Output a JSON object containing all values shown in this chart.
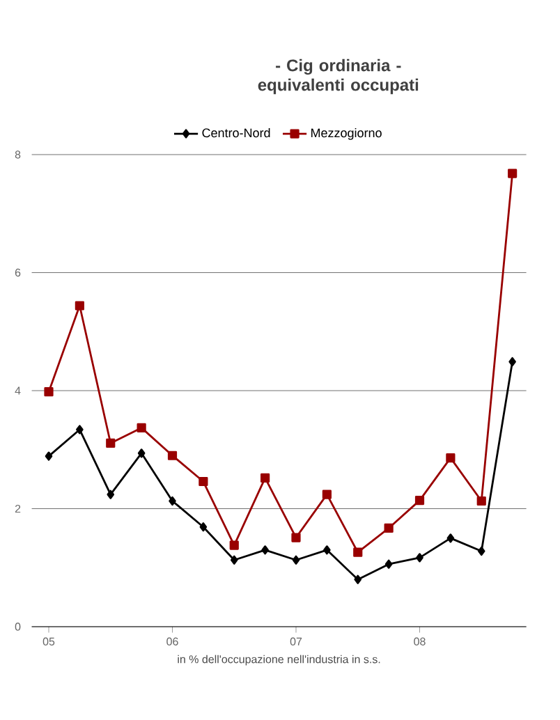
{
  "chart_data": {
    "type": "line",
    "title": "- Cig ordinaria - equivalenti occupati",
    "xlabel": "in % dell'occupazione nell'industria in s.s.",
    "categories": [
      "05",
      null,
      null,
      null,
      "06",
      null,
      null,
      null,
      "07",
      null,
      null,
      null,
      "08",
      null,
      null,
      null
    ],
    "series": [
      {
        "name": "Centro-Nord",
        "color": "#000000",
        "marker": "diamond",
        "values": [
          2.89,
          3.34,
          2.24,
          2.94,
          2.13,
          1.69,
          1.13,
          1.3,
          1.13,
          1.3,
          0.8,
          1.06,
          1.17,
          1.5,
          1.28,
          4.49
        ]
      },
      {
        "name": "Mezzogiorno",
        "color": "#990000",
        "marker": "square",
        "values": [
          3.98,
          5.44,
          3.11,
          3.37,
          2.9,
          2.46,
          1.38,
          2.52,
          1.51,
          2.24,
          1.26,
          1.67,
          2.14,
          2.86,
          2.13,
          7.68
        ]
      }
    ],
    "ylim": [
      0,
      8
    ],
    "yticks": [
      0,
      2,
      4,
      6,
      8
    ],
    "grid": "y",
    "legend": "top",
    "line_style": "solid"
  }
}
